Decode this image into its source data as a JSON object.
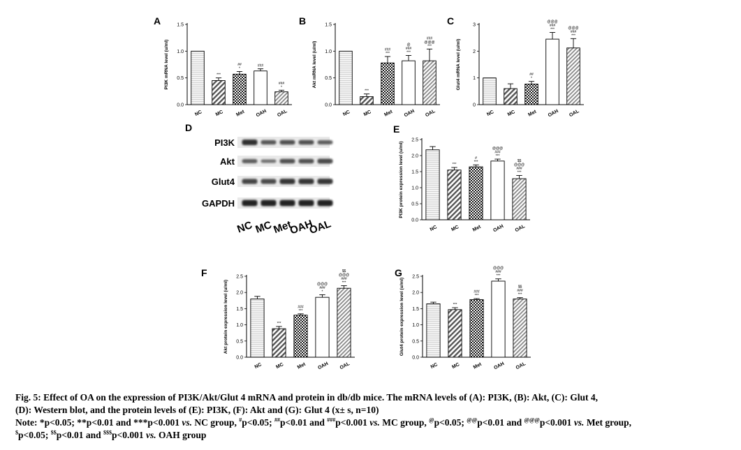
{
  "chart_data": [
    {
      "panel": "A",
      "type": "bar",
      "categories": [
        "NC",
        "MC",
        "Met",
        "OAH",
        "OAL"
      ],
      "values": [
        1.0,
        0.45,
        0.57,
        0.63,
        0.24
      ],
      "errors": [
        0,
        0.05,
        0.05,
        0.04,
        0.03
      ],
      "ylabel": "PI3K mRNA level (u/ml)",
      "ylim": [
        0,
        1.5
      ],
      "yticks": [
        "0.0",
        "0.5",
        "1.0",
        "1.5"
      ],
      "annotations": [
        [],
        [
          "***"
        ],
        [
          "##",
          "*"
        ],
        [
          "###"
        ],
        [
          "###",
          "*"
        ]
      ]
    },
    {
      "panel": "B",
      "type": "bar",
      "categories": [
        "NC",
        "MC",
        "Met",
        "OAH",
        "OAL"
      ],
      "values": [
        1.0,
        0.15,
        0.78,
        0.82,
        0.82
      ],
      "errors": [
        0,
        0.05,
        0.12,
        0.1,
        0.22
      ],
      "ylabel": "Akt mRNA level (u/ml)",
      "ylim": [
        0,
        1.5
      ],
      "yticks": [
        "0.0",
        "0.5",
        "1.0",
        "1.5"
      ],
      "annotations": [
        [],
        [
          "***"
        ],
        [
          "###",
          "***"
        ],
        [
          "@",
          "###",
          "***"
        ],
        [
          "###",
          "@@@",
          "***"
        ]
      ]
    },
    {
      "panel": "C",
      "type": "bar",
      "categories": [
        "NC",
        "MC",
        "Met",
        "OAH",
        "OAL"
      ],
      "values": [
        1.0,
        0.6,
        0.77,
        2.45,
        2.12
      ],
      "errors": [
        0,
        0.18,
        0.1,
        0.25,
        0.35
      ],
      "ylabel": "Glut4 mRNA level (u/ml)",
      "ylim": [
        0,
        3
      ],
      "yticks": [
        "0",
        "1",
        "2",
        "3"
      ],
      "annotations": [
        [],
        [],
        [
          "##",
          "*"
        ],
        [
          "@@@",
          "###",
          "***"
        ],
        [
          "@@@",
          "###",
          "***"
        ]
      ]
    },
    {
      "panel": "E",
      "type": "bar",
      "categories": [
        "NC",
        "MC",
        "Met",
        "OAH",
        "OAL"
      ],
      "values": [
        2.18,
        1.55,
        1.65,
        1.83,
        1.28
      ],
      "errors": [
        0.1,
        0.08,
        0.06,
        0.06,
        0.1
      ],
      "ylabel": "PI3K protein expression level (u/ml)",
      "ylim": [
        0,
        2.5
      ],
      "yticks": [
        "0.0",
        "0.5",
        "1.0",
        "1.5",
        "2.0",
        "2.5"
      ],
      "annotations": [
        [],
        [
          "***"
        ],
        [
          "#",
          "***"
        ],
        [
          "@@@",
          "###",
          "***"
        ],
        [
          "$$",
          "@@@",
          "###",
          "***"
        ]
      ]
    },
    {
      "panel": "F",
      "type": "bar",
      "categories": [
        "NC",
        "MC",
        "Met",
        "OAH",
        "OAL"
      ],
      "values": [
        1.8,
        0.88,
        1.3,
        1.85,
        2.13
      ],
      "errors": [
        0.08,
        0.07,
        0.04,
        0.08,
        0.08
      ],
      "ylabel": "Akt protein expression level (u/ml)",
      "ylim": [
        0,
        2.5
      ],
      "yticks": [
        "0.0",
        "0.5",
        "1.0",
        "1.5",
        "2.0",
        "2.5"
      ],
      "annotations": [
        [],
        [
          "***"
        ],
        [
          "###",
          "***"
        ],
        [
          "@@@",
          "###",
          "*"
        ],
        [
          "$$",
          "@@@",
          "###",
          "***"
        ]
      ]
    },
    {
      "panel": "G",
      "type": "bar",
      "categories": [
        "NC",
        "MC",
        "Met",
        "OAH",
        "OAL"
      ],
      "values": [
        1.65,
        1.47,
        1.78,
        2.35,
        1.8
      ],
      "errors": [
        0.05,
        0.06,
        0.03,
        0.07,
        0.04
      ],
      "ylabel": "Glut4 protein expression level (u/ml)",
      "ylim": [
        0,
        2.5
      ],
      "yticks": [
        "0.0",
        "0.5",
        "1.0",
        "1.5",
        "2.0",
        "2.5"
      ],
      "annotations": [
        [],
        [
          "***"
        ],
        [
          "###",
          "***"
        ],
        [
          "@@@",
          "###",
          "***"
        ],
        [
          "$$",
          "###",
          "***"
        ]
      ]
    }
  ],
  "western_blot": {
    "panel": "D",
    "proteins": [
      "PI3K",
      "Akt",
      "Glut4",
      "GAPDH"
    ],
    "lanes": [
      "NC",
      "MC",
      "Met",
      "OAH",
      "OAL"
    ],
    "intensity": [
      [
        0.85,
        0.55,
        0.6,
        0.6,
        0.5
      ],
      [
        0.5,
        0.35,
        0.6,
        0.6,
        0.65
      ],
      [
        0.7,
        0.65,
        0.8,
        0.8,
        0.8
      ],
      [
        0.95,
        0.95,
        0.95,
        0.95,
        0.95
      ]
    ]
  },
  "colors": {
    "bar_outline": "#000000",
    "nc_fill": "#ececec",
    "blot_band": "#1a1a1a"
  },
  "caption": {
    "line1": "Fig. 5: Effect of OA on the expression of PI3K/Akt/Glut 4 mRNA and protein in db/db mice. The mRNA levels of (A): PI3K, (B): Akt, (C): Glut 4,",
    "line2": "(D): Western blot, and the protein levels of (E): PI3K, (F): Akt and (G): Glut 4 (x± s, n=10)",
    "note_label": "Note: ",
    "n1": "*p<0.05; **p<0.01 and ***p<0.001 ",
    "vs1": "vs.",
    "n2": " NC group, ",
    "s_hash1": "#",
    "n3": "p<0.05; ",
    "s_hash2": "##",
    "n4": "p<0.01 and ",
    "s_hash3": "###",
    "n5": "p<0.001 ",
    "vs2": "vs.",
    "n6": " MC group, ",
    "s_at1": "@",
    "n7": "p<0.05; ",
    "s_at2": "@@",
    "n8": "p<0.01 and ",
    "s_at3": "@@@",
    "n9": "p<0.001 ",
    "vs3": "vs.",
    "n10": " Met group, ",
    "s_d1": "$",
    "n11": "p<0.05; ",
    "s_d2": "$$",
    "n12": "p<0.01 and ",
    "s_d3": "$$$",
    "n13": "p<0.001 ",
    "vs4": "vs.",
    "n14": " OAH group"
  }
}
